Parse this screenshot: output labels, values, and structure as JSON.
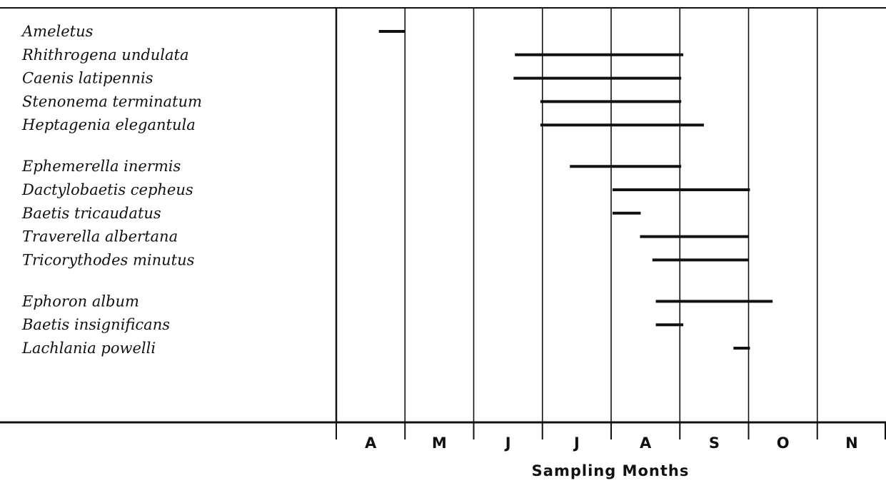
{
  "chart_data": {
    "type": "bar",
    "subtype": "gantt",
    "xlabel": "Sampling Months",
    "months": [
      "A",
      "M",
      "J",
      "J",
      "A",
      "S",
      "O",
      "N"
    ],
    "xlim": [
      0,
      8
    ],
    "x_unit": "months (0 = start of April)",
    "groups": [
      [
        {
          "name": "Ameletus",
          "start": 0.62,
          "end": 1.0
        },
        {
          "name": "Rhithrogena undulata",
          "start": 2.6,
          "end": 5.05
        },
        {
          "name": "Caenis latipennis",
          "start": 2.58,
          "end": 5.02
        },
        {
          "name": "Stenonema terminatum",
          "start": 2.97,
          "end": 5.02
        },
        {
          "name": "Heptagenia elegantula",
          "start": 2.97,
          "end": 5.35
        }
      ],
      [
        {
          "name": "Ephemerella inermis",
          "start": 3.4,
          "end": 5.02
        },
        {
          "name": "Dactylobaetis cepheus",
          "start": 4.02,
          "end": 6.02
        },
        {
          "name": "Baetis tricaudatus",
          "start": 4.02,
          "end": 4.43
        },
        {
          "name": "Traverella albertana",
          "start": 4.42,
          "end": 6.0
        },
        {
          "name": "Tricorythodes minutus",
          "start": 4.6,
          "end": 6.0
        }
      ],
      [
        {
          "name": "Ephoron album",
          "start": 4.65,
          "end": 6.35
        },
        {
          "name": "Baetis insignificans",
          "start": 4.65,
          "end": 5.05
        },
        {
          "name": "Lachlania powelli",
          "start": 5.78,
          "end": 6.02
        }
      ]
    ]
  }
}
